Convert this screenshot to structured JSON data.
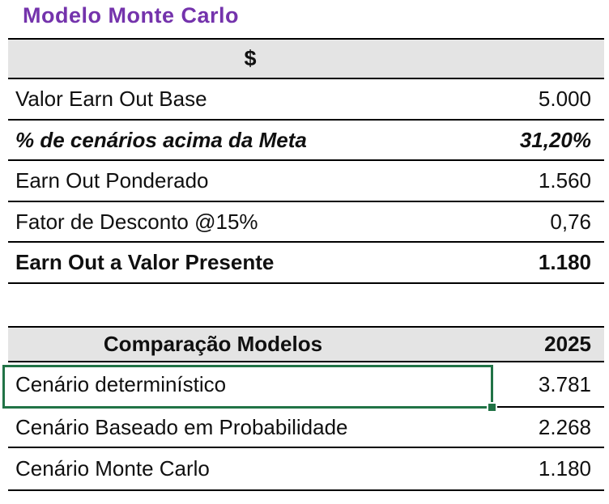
{
  "title": "Modelo Monte Carlo",
  "earn_out_table": {
    "header": {
      "label": "$"
    },
    "rows": [
      {
        "label": "Valor Earn Out Base",
        "value": "5.000"
      },
      {
        "label": "% de cenários acima da Meta",
        "value": "31,20%"
      },
      {
        "label": "Earn Out Ponderado",
        "value": "1.560"
      },
      {
        "label": "Fator de Desconto @15%",
        "value": "0,76"
      },
      {
        "label": "Earn Out a Valor Presente",
        "value": "1.180"
      }
    ]
  },
  "comparison_table": {
    "header": {
      "label": "Comparação Modelos",
      "year": "2025"
    },
    "rows": [
      {
        "label": "Cenário determinístico",
        "value": "3.781"
      },
      {
        "label": "Cenário Baseado em Probabilidade",
        "value": "2.268"
      },
      {
        "label": "Cenário Monte Carlo",
        "value": "1.180"
      }
    ]
  },
  "colors": {
    "title_purple": "#7433AC",
    "header_bg": "#E4E4E4",
    "selection_green": "#217346",
    "border_black": "#000000"
  }
}
